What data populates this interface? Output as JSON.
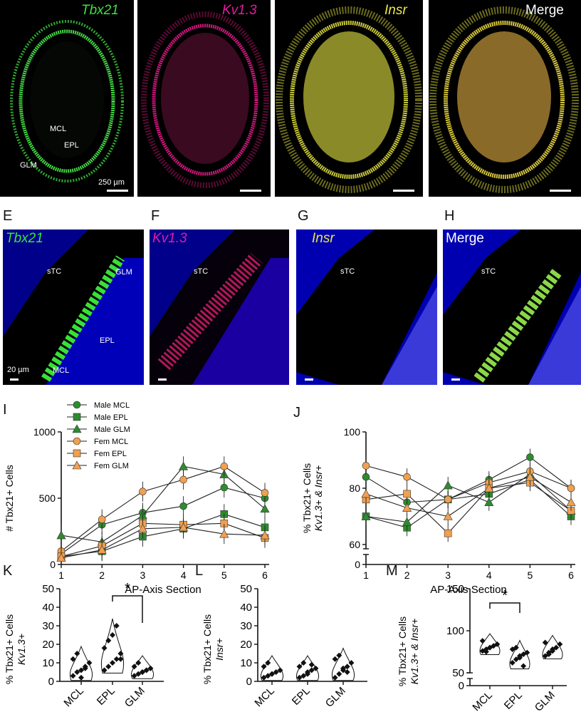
{
  "figure": {
    "panels_top": [
      {
        "label": "Tbx21",
        "color": "#3be33b",
        "italic": true
      },
      {
        "label": "Kv1.3",
        "color": "#e41aa0",
        "italic": true
      },
      {
        "label": "Insr",
        "color": "#e8e84a",
        "italic": true
      },
      {
        "label": "Merge",
        "color": "#ffffff",
        "italic": false
      }
    ],
    "top_annotations": {
      "mcl": "MCL",
      "epl": "EPL",
      "glm": "GLM",
      "scale": "250 µm"
    },
    "panels_mid": [
      {
        "letter": "E",
        "label": "Tbx21",
        "color": "#3be33b"
      },
      {
        "letter": "F",
        "label": "Kv1.3",
        "color": "#e41aa0"
      },
      {
        "letter": "G",
        "label": "Insr",
        "color": "#e8e84a"
      },
      {
        "letter": "H",
        "label": "Merge",
        "color": "#ffffff"
      }
    ],
    "mid_annotations": {
      "stc": "sTC",
      "glm": "GLM",
      "epl": "EPL",
      "mcl": "MCL",
      "scale": "20 µm"
    },
    "letters": {
      "i": "I",
      "j": "J",
      "k": "K",
      "l": "L",
      "m": "M"
    }
  },
  "chart_data": [
    {
      "type": "line",
      "id": "I",
      "xlabel": "AP-Axis Section",
      "ylabel": "# Tbx21+ Cells",
      "x": [
        1,
        2,
        3,
        4,
        5,
        6
      ],
      "ylim": [
        0,
        1000
      ],
      "yticks": [
        "0",
        "500",
        "1000"
      ],
      "xticks": [
        "1",
        "2",
        "3",
        "4",
        "5",
        "6"
      ],
      "series": [
        {
          "name": "Male MCL",
          "marker": "circle",
          "color": "#2e8b2e",
          "values": [
            80,
            300,
            390,
            440,
            580,
            500
          ]
        },
        {
          "name": "Male EPL",
          "marker": "square",
          "color": "#2e8b2e",
          "values": [
            60,
            100,
            210,
            270,
            380,
            280
          ]
        },
        {
          "name": "Male GLM",
          "marker": "triangle",
          "color": "#2e8b2e",
          "values": [
            220,
            170,
            370,
            740,
            680,
            420
          ]
        },
        {
          "name": "Fem MCL",
          "marker": "circle",
          "color": "#f0a050",
          "values": [
            100,
            340,
            550,
            640,
            740,
            540
          ]
        },
        {
          "name": "Fem EPL",
          "marker": "square",
          "color": "#f0a050",
          "values": [
            60,
            140,
            310,
            300,
            310,
            200
          ]
        },
        {
          "name": "Fem GLM",
          "marker": "triangle",
          "color": "#f0a050",
          "values": [
            50,
            110,
            270,
            280,
            230,
            220
          ]
        }
      ]
    },
    {
      "type": "line",
      "id": "J",
      "xlabel": "AP-Axis Section",
      "ylabel": "% Tbx21+ Cells",
      "ylabel2": "Kv1.3+ & Insr+",
      "x": [
        1,
        2,
        3,
        4,
        5,
        6
      ],
      "ylim": [
        0,
        100
      ],
      "yticks": [
        "0",
        "60",
        "80",
        "100"
      ],
      "xticks": [
        "1",
        "2",
        "3",
        "4",
        "5",
        "6"
      ],
      "series": [
        {
          "name": "Male MCL",
          "values": [
            84,
            75,
            76,
            83,
            91,
            80
          ]
        },
        {
          "name": "Male EPL",
          "values": [
            70,
            66,
            76,
            78,
            83,
            70
          ]
        },
        {
          "name": "Male GLM",
          "values": [
            70,
            68,
            81,
            75,
            85,
            72
          ]
        },
        {
          "name": "Fem MCL",
          "values": [
            88,
            84,
            76,
            82,
            86,
            80
          ]
        },
        {
          "name": "Fem EPL",
          "values": [
            76,
            78,
            64,
            80,
            82,
            72
          ]
        },
        {
          "name": "Fem GLM",
          "values": [
            78,
            73,
            70,
            80,
            84,
            75
          ]
        }
      ]
    },
    {
      "type": "scatter",
      "id": "K",
      "ylabel": "% Tbx21+ Cells",
      "ylabel2": "Kv1.3+",
      "categories": [
        "MCL",
        "EPL",
        "GLM"
      ],
      "ylim": [
        0,
        50
      ],
      "yticks": [
        "0",
        "10",
        "20",
        "30",
        "40",
        "50"
      ],
      "significance": "*",
      "values": [
        [
          3,
          5,
          6,
          8,
          10,
          12,
          15,
          2,
          7
        ],
        [
          6,
          8,
          10,
          12,
          15,
          18,
          22,
          25,
          30,
          12
        ],
        [
          3,
          4,
          5,
          6,
          7,
          8,
          10,
          5,
          6
        ]
      ]
    },
    {
      "type": "scatter",
      "id": "L",
      "ylabel": "% Tbx21+ Cells",
      "ylabel2": "Insr+",
      "categories": [
        "MCL",
        "EPL",
        "GLM"
      ],
      "ylim": [
        0,
        50
      ],
      "yticks": [
        "0",
        "10",
        "20",
        "30",
        "40",
        "50"
      ],
      "values": [
        [
          2,
          3,
          4,
          5,
          6,
          8,
          10,
          4
        ],
        [
          2,
          3,
          5,
          6,
          7,
          8,
          10,
          4,
          9
        ],
        [
          2,
          4,
          6,
          8,
          10,
          12,
          14,
          7,
          5
        ]
      ]
    },
    {
      "type": "scatter",
      "id": "M",
      "ylabel": "% Tbx21+ Cells",
      "ylabel2": "Kv1.3+ & Insr+",
      "categories": [
        "MCL",
        "EPL",
        "GLM"
      ],
      "ylim": [
        0,
        150
      ],
      "yticks": [
        "0",
        "50",
        "100",
        "150"
      ],
      "significance": "*",
      "values": [
        [
          76,
          78,
          80,
          82,
          84,
          88,
          75,
          80
        ],
        [
          62,
          66,
          70,
          72,
          74,
          78,
          80,
          68,
          58
        ],
        [
          70,
          74,
          76,
          80,
          84,
          86,
          72,
          78
        ]
      ]
    }
  ]
}
